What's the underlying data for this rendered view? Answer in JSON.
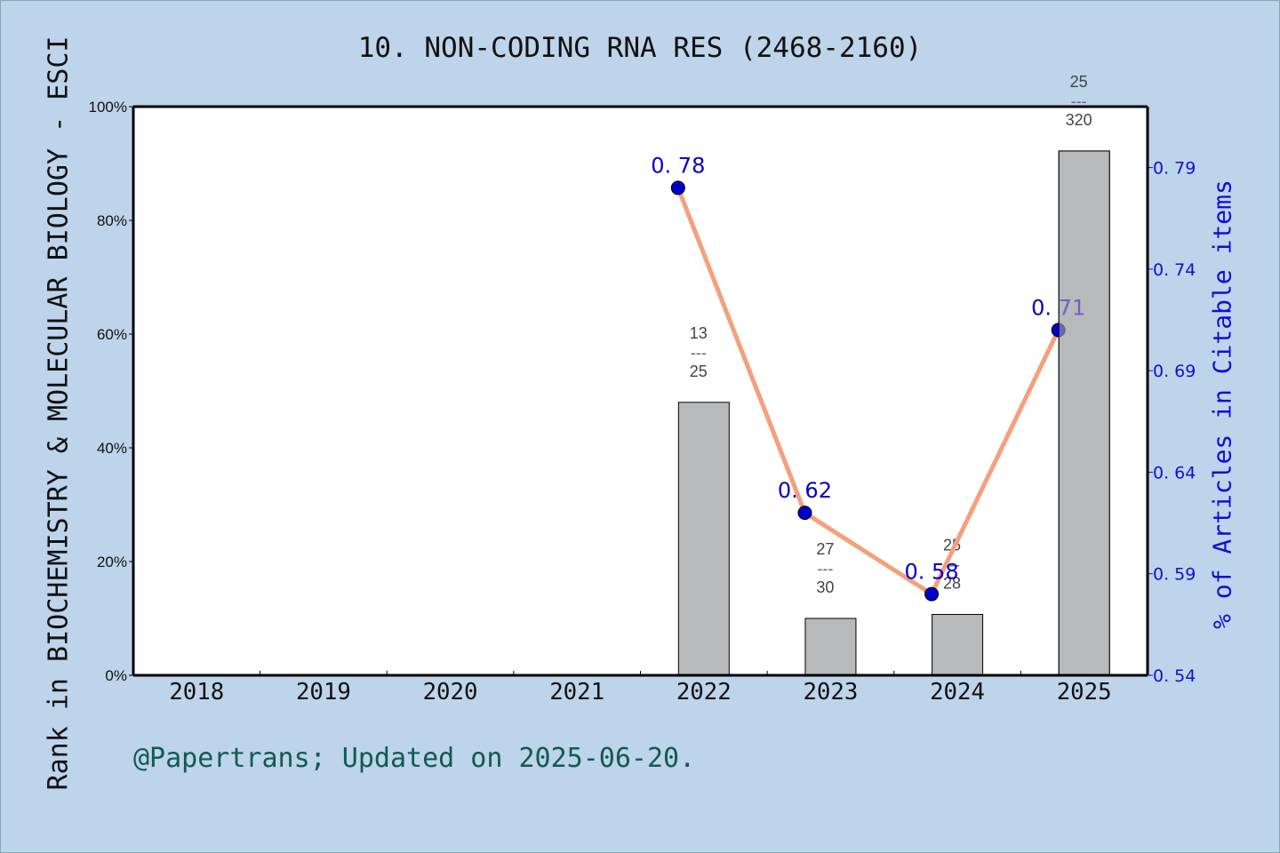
{
  "chart_data": {
    "type": "bar+line",
    "title": "10. NON-CODING RNA RES (2468-2160)",
    "xlabel": "",
    "ylabel": "Rank in BIOCHEMISTRY & MOLECULAR BIOLOGY - ESCI",
    "ylabel_right": "% of Articles in Citable items",
    "categories": [
      "2018",
      "2019",
      "2020",
      "2021",
      "2022",
      "2023",
      "2024",
      "2025"
    ],
    "ylim": [
      0,
      100
    ],
    "yticks": [
      "0%",
      "20%",
      "40%",
      "60%",
      "80%",
      "100%"
    ],
    "ylim_right": [
      0.54,
      0.82
    ],
    "yticks_right": [
      "0.54",
      "0.59",
      "0.64",
      "0.69",
      "0.74",
      "0.79"
    ],
    "grid": false,
    "series": [
      {
        "name": "Rank percentile (bars)",
        "type": "bar",
        "color": "#b8b9bb",
        "values": [
          null,
          null,
          null,
          null,
          48.0,
          10.0,
          10.7,
          92.2
        ],
        "labels": [
          null,
          null,
          null,
          null,
          {
            "rank": "13",
            "total": "25"
          },
          {
            "rank": "27",
            "total": "30"
          },
          {
            "rank": "25",
            "total": "28"
          },
          {
            "rank": "25",
            "total": "320"
          }
        ]
      },
      {
        "name": "% of Articles in Citable items (line)",
        "type": "line",
        "axis": "right",
        "line_color": "#f4a07c",
        "marker_color": "#0000cc",
        "values": [
          null,
          null,
          null,
          null,
          0.78,
          0.62,
          0.58,
          0.71
        ],
        "labels": [
          null,
          null,
          null,
          null,
          "0.78",
          "0.62",
          "0.58",
          "0.71"
        ]
      }
    ]
  },
  "footer": "@Papertrans; Updated on 2025-06-20.",
  "colors": {
    "background": "#bed4eb",
    "plot_bg": "#ffffff",
    "bar": "#b8b9bb",
    "line": "#f4a07c",
    "marker": "#0000cc",
    "right_axis_text": "#1010d0",
    "footer_text": "#0f5b52"
  }
}
